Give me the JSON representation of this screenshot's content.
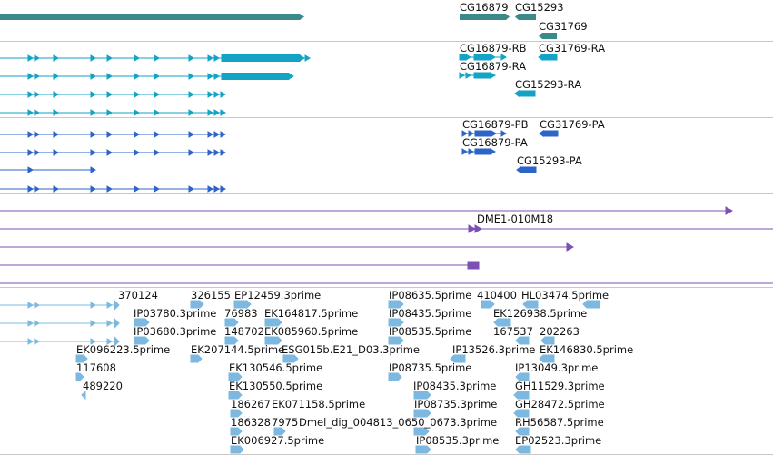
{
  "colors": {
    "gene": "#3a8a8a",
    "mrna": "#13a3c4",
    "cds": "#2d64c8",
    "clone": "#7d50b4",
    "est": "#7cb8e0",
    "separator": "#c8c8c8",
    "text": "#111111"
  },
  "tracks": {
    "gene": {
      "labels": [
        "CG16879",
        "CG15293",
        "CG31769"
      ]
    },
    "mrna": {
      "labels": [
        "CG16879-RB",
        "CG31769-RA",
        "CG16879-RA",
        "CG15293-RA"
      ]
    },
    "cds": {
      "labels": [
        "CG16879-PB",
        "CG31769-PA",
        "CG16879-PA",
        "CG15293-PA"
      ]
    },
    "clone": {
      "labels": [
        "DME1-010M18"
      ]
    },
    "est": {
      "labels": [
        "370124",
        "326155",
        "EP12459.3prime",
        "IP08635.5prime",
        "410400",
        "HL03474.5prime",
        "IP03780.3prime",
        "76983",
        "EK164817.5prime",
        "IP08435.5prime",
        "EK126938.5prime",
        "IP03680.3prime",
        "148702",
        "EK085960.5prime",
        "IP08535.5prime",
        "167537",
        "202263",
        "EK096223.5prime",
        "EK207144.5prime",
        "ESG015b.E21_D03.3prime",
        "IP13526.3prime",
        "EK146830.5prime",
        "117608",
        "EK130546.5prime",
        "IP08735.5prime",
        "IP13049.3prime",
        "489220",
        "EK130550.5prime",
        "IP08435.3prime",
        "GH11529.3prime",
        "186267",
        "EK071158.5prime",
        "IP08735.3prime",
        "GH28472.5prime",
        "186328",
        "7975",
        "Dmel_dig_004813_0650_0673.3prime",
        "RH56587.5prime",
        "EK006927.5prime",
        "IP08535.3prime",
        "EP02523.3prime"
      ]
    }
  }
}
